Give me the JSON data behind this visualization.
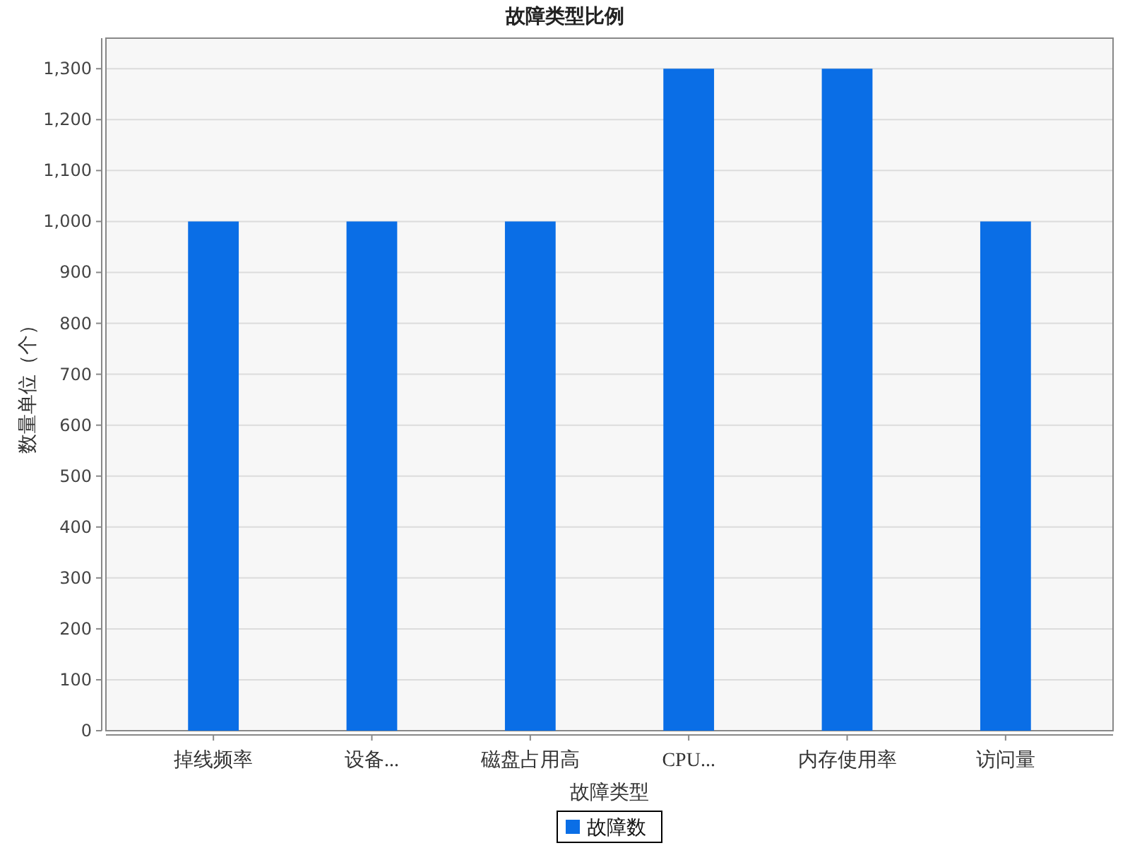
{
  "chart_data": {
    "type": "bar",
    "title": "故障类型比例",
    "xlabel": "故障类型",
    "ylabel": "数量单位（个）",
    "categories": [
      "掉线频率",
      "设备...",
      "磁盘占用高",
      "CPU...",
      "内存使用率",
      "访问量"
    ],
    "series": [
      {
        "name": "故障数",
        "color": "#0a6ee6",
        "values": [
          1000,
          1000,
          1000,
          1300,
          1300,
          1000
        ]
      }
    ],
    "ylim": [
      0,
      1360
    ],
    "yticks": [
      0,
      100,
      200,
      300,
      400,
      500,
      600,
      700,
      800,
      900,
      {
        "value": 1000,
        "label": "1,000"
      },
      {
        "value": 1100,
        "label": "1,100"
      },
      {
        "value": 1200,
        "label": "1,200"
      },
      {
        "value": 1300,
        "label": "1,300"
      }
    ],
    "grid": "y",
    "legend": "bottom"
  }
}
